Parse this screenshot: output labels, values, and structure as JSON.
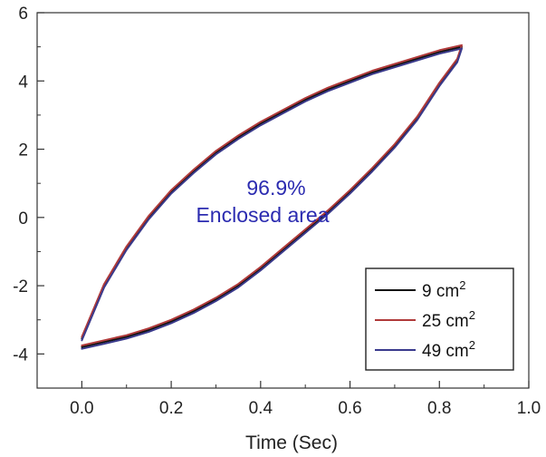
{
  "chart_data": {
    "type": "line",
    "title": "",
    "xlabel": "Time (Sec)",
    "ylabel": "",
    "xlim": [
      -0.1,
      1.0
    ],
    "ylim": [
      -5,
      6
    ],
    "xticks": [
      0.0,
      0.2,
      0.4,
      0.6,
      0.8,
      1.0
    ],
    "xtick_labels": [
      "0.0",
      "0.2",
      "0.4",
      "0.6",
      "0.8",
      "1.0"
    ],
    "yticks": [
      -4,
      -2,
      0,
      2,
      4,
      6
    ],
    "ytick_labels": [
      "-4",
      "-2",
      "0",
      "2",
      "4",
      "6"
    ],
    "grid": false,
    "legend_position": "bottom-right",
    "annotation": {
      "line1": "96.9%",
      "line2": "Enclosed area",
      "color": "#2b2bb0"
    },
    "series": [
      {
        "name": "9 cm",
        "unit_superscript": "2",
        "color": "#111111",
        "x": [
          0.0,
          0.05,
          0.1,
          0.15,
          0.2,
          0.25,
          0.3,
          0.35,
          0.4,
          0.45,
          0.5,
          0.55,
          0.6,
          0.65,
          0.7,
          0.75,
          0.8,
          0.85,
          0.84,
          0.8,
          0.75,
          0.7,
          0.65,
          0.6,
          0.55,
          0.5,
          0.45,
          0.4,
          0.35,
          0.3,
          0.25,
          0.2,
          0.15,
          0.1,
          0.05,
          0.0
        ],
        "y": [
          -3.55,
          -2.0,
          -0.9,
          0.0,
          0.75,
          1.35,
          1.9,
          2.35,
          2.75,
          3.1,
          3.45,
          3.75,
          4.0,
          4.25,
          4.45,
          4.65,
          4.85,
          5.0,
          4.6,
          3.9,
          2.9,
          2.1,
          1.4,
          0.75,
          0.15,
          -0.4,
          -0.95,
          -1.5,
          -2.0,
          -2.4,
          -2.75,
          -3.05,
          -3.3,
          -3.5,
          -3.65,
          -3.8
        ]
      },
      {
        "name": "25 cm",
        "unit_superscript": "2",
        "color": "#b03a3a",
        "x": [
          0.0,
          0.05,
          0.1,
          0.15,
          0.2,
          0.25,
          0.3,
          0.35,
          0.4,
          0.45,
          0.5,
          0.55,
          0.6,
          0.65,
          0.7,
          0.75,
          0.8,
          0.85,
          0.84,
          0.8,
          0.75,
          0.7,
          0.65,
          0.6,
          0.55,
          0.5,
          0.45,
          0.4,
          0.35,
          0.3,
          0.25,
          0.2,
          0.15,
          0.1,
          0.05,
          0.0
        ],
        "y": [
          -3.5,
          -1.95,
          -0.85,
          0.05,
          0.8,
          1.4,
          1.95,
          2.4,
          2.8,
          3.15,
          3.5,
          3.8,
          4.05,
          4.3,
          4.5,
          4.7,
          4.9,
          5.05,
          4.65,
          3.95,
          2.95,
          2.15,
          1.45,
          0.8,
          0.2,
          -0.35,
          -0.9,
          -1.45,
          -1.95,
          -2.35,
          -2.7,
          -3.0,
          -3.25,
          -3.45,
          -3.6,
          -3.75
        ]
      },
      {
        "name": "49 cm",
        "unit_superscript": "2",
        "color": "#3a3a8c",
        "x": [
          0.0,
          0.05,
          0.1,
          0.15,
          0.2,
          0.25,
          0.3,
          0.35,
          0.4,
          0.45,
          0.5,
          0.55,
          0.6,
          0.65,
          0.7,
          0.75,
          0.8,
          0.85,
          0.84,
          0.8,
          0.75,
          0.7,
          0.65,
          0.6,
          0.55,
          0.5,
          0.45,
          0.4,
          0.35,
          0.3,
          0.25,
          0.2,
          0.15,
          0.1,
          0.05,
          0.0
        ],
        "y": [
          -3.6,
          -2.05,
          -0.95,
          -0.05,
          0.7,
          1.3,
          1.85,
          2.3,
          2.7,
          3.05,
          3.4,
          3.7,
          3.95,
          4.2,
          4.4,
          4.6,
          4.8,
          4.95,
          4.55,
          3.85,
          2.85,
          2.05,
          1.35,
          0.7,
          0.1,
          -0.45,
          -1.0,
          -1.55,
          -2.05,
          -2.45,
          -2.8,
          -3.1,
          -3.35,
          -3.55,
          -3.7,
          -3.85
        ]
      }
    ]
  }
}
